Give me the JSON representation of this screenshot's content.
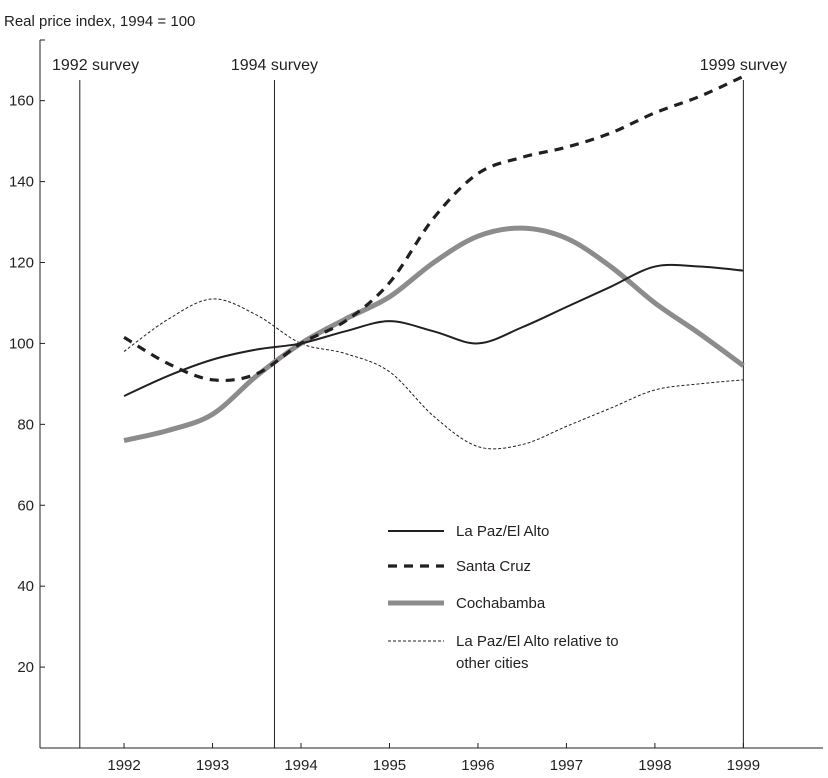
{
  "chart_data": {
    "type": "line",
    "ylabel": "Real price index, 1994 = 100",
    "xlabel": "",
    "x": [
      1992,
      1992.5,
      1993,
      1993.5,
      1994,
      1994.5,
      1995,
      1995.5,
      1996,
      1996.5,
      1997,
      1997.5,
      1998,
      1998.5,
      1999
    ],
    "xticks": [
      "1992",
      "1993",
      "1994",
      "1995",
      "1996",
      "1997",
      "1998",
      "1999"
    ],
    "xlim": [
      1991.05,
      1999.9
    ],
    "ylim": [
      0,
      175
    ],
    "yticks": [
      "20",
      "40",
      "60",
      "80",
      "100",
      "120",
      "140",
      "160"
    ],
    "grid": false,
    "legend_position": "lower-center",
    "series": [
      {
        "name": "La Paz/El Alto",
        "style": "solid",
        "color": "#231f20",
        "values": [
          87,
          92,
          96,
          98.5,
          100,
          103,
          105.5,
          103,
          100,
          104,
          109,
          114,
          119,
          119,
          118
        ]
      },
      {
        "name": "Santa Cruz",
        "style": "dashed",
        "color": "#231f20",
        "values": [
          101.5,
          95,
          91,
          92.5,
          100,
          105.5,
          115,
          131,
          142,
          146,
          148.5,
          152,
          157,
          161,
          166
        ]
      },
      {
        "name": "Cochabamba",
        "style": "thick",
        "color": "#8c8c8c",
        "values": [
          76,
          78.5,
          82.5,
          92,
          100,
          106,
          111.5,
          120,
          126.5,
          128.5,
          126,
          119,
          110,
          102.5,
          94.5
        ]
      },
      {
        "name": "La Paz/El Alto relative to other cities",
        "name_lines": [
          "La Paz/El Alto relative to",
          "other cities"
        ],
        "style": "dotted",
        "color": "#231f20",
        "values": [
          98,
          106,
          111,
          107,
          100,
          97.5,
          93,
          82,
          74.5,
          75,
          79.5,
          84,
          88.5,
          90,
          91
        ]
      }
    ],
    "annotations": [
      {
        "label": "1992 survey",
        "x": 1991.5
      },
      {
        "label": "1994 survey",
        "x": 1993.7
      },
      {
        "label": "1999 survey",
        "x": 1999
      }
    ]
  }
}
